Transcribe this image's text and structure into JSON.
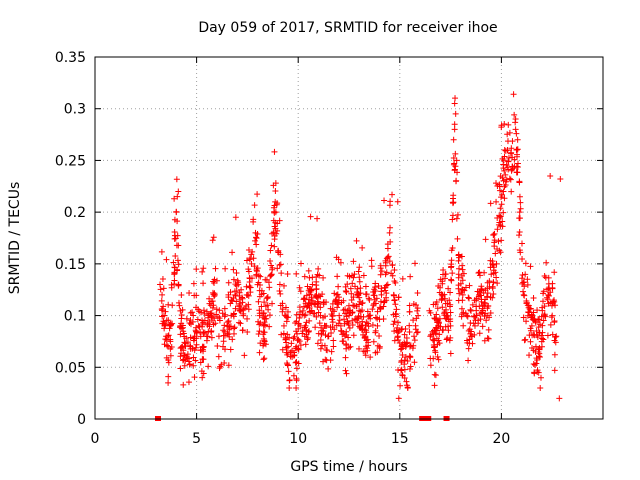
{
  "chart_data": {
    "type": "scatter",
    "title": "Day 059 of 2017, SRMTID for receiver ihoe",
    "xlabel": "GPS time / hours",
    "ylabel": "SRMTID / TECUs",
    "xlim": [
      0,
      25
    ],
    "ylim": [
      0,
      0.35
    ],
    "x_ticks": [
      "0",
      "5",
      "10",
      "15",
      "20"
    ],
    "y_ticks": [
      "0",
      "0.05",
      "0.1",
      "0.15",
      "0.2",
      "0.25",
      "0.3",
      "0.35"
    ],
    "grid": true,
    "marker": "+",
    "color": "#ff0000",
    "zero_markers_x": [
      3.1,
      16.1,
      16.3,
      16.4,
      17.3
    ],
    "series": [
      {
        "name": "SRMTID",
        "note": "dense cloud of points; representative values per time bin read from the plot",
        "x": [
          3.2,
          3.3,
          3.4,
          3.5,
          3.6,
          3.7,
          3.8,
          3.9,
          4.0,
          4.1,
          4.2,
          4.3,
          4.5,
          4.7,
          4.9,
          5.1,
          5.3,
          5.5,
          5.7,
          5.9,
          6.1,
          6.3,
          6.5,
          6.7,
          6.9,
          7.1,
          7.3,
          7.5,
          7.7,
          7.9,
          8.1,
          8.3,
          8.5,
          8.7,
          8.9,
          9.1,
          9.3,
          9.5,
          9.7,
          9.9,
          10.1,
          10.3,
          10.5,
          10.7,
          10.9,
          11.1,
          11.3,
          11.5,
          11.7,
          11.9,
          12.1,
          12.3,
          12.5,
          12.7,
          12.9,
          13.1,
          13.3,
          13.5,
          13.7,
          13.9,
          14.1,
          14.3,
          14.5,
          14.7,
          14.9,
          15.1,
          15.3,
          15.5,
          15.7,
          15.9,
          16.5,
          16.7,
          16.9,
          17.1,
          17.3,
          17.5,
          17.7,
          17.9,
          18.1,
          18.3,
          18.5,
          18.7,
          18.9,
          19.1,
          19.3,
          19.5,
          19.7,
          19.9,
          20.1,
          20.3,
          20.5,
          20.7,
          20.9,
          21.1,
          21.3,
          21.5,
          21.7,
          21.9,
          22.1,
          22.3,
          22.5,
          22.7
        ],
        "values": [
          0.13,
          0.12,
          0.1,
          0.08,
          0.07,
          0.09,
          0.11,
          0.14,
          0.2,
          0.13,
          0.09,
          0.07,
          0.06,
          0.07,
          0.08,
          0.09,
          0.07,
          0.08,
          0.11,
          0.12,
          0.08,
          0.07,
          0.09,
          0.1,
          0.12,
          0.11,
          0.1,
          0.12,
          0.15,
          0.18,
          0.1,
          0.09,
          0.11,
          0.14,
          0.2,
          0.13,
          0.09,
          0.07,
          0.06,
          0.07,
          0.09,
          0.1,
          0.11,
          0.13,
          0.12,
          0.1,
          0.09,
          0.08,
          0.1,
          0.12,
          0.09,
          0.08,
          0.1,
          0.11,
          0.12,
          0.09,
          0.08,
          0.1,
          0.11,
          0.09,
          0.12,
          0.14,
          0.18,
          0.12,
          0.08,
          0.07,
          0.06,
          0.07,
          0.08,
          0.1,
          0.08,
          0.07,
          0.09,
          0.12,
          0.1,
          0.09,
          0.28,
          0.14,
          0.12,
          0.1,
          0.08,
          0.09,
          0.12,
          0.11,
          0.1,
          0.14,
          0.16,
          0.19,
          0.22,
          0.26,
          0.24,
          0.28,
          0.2,
          0.12,
          0.11,
          0.09,
          0.07,
          0.06,
          0.1,
          0.12,
          0.1,
          0.08
        ],
        "envelope_min": 0.03,
        "peak_max": 0.314,
        "peak_x": 20.6
      }
    ]
  }
}
